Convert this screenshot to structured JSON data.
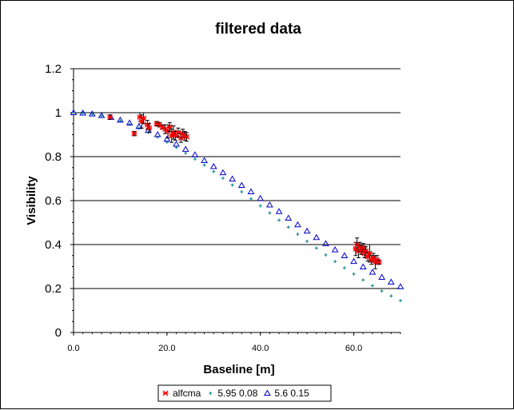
{
  "chart_data": {
    "type": "scatter",
    "title": "filtered data",
    "xlabel": "Baseline [m]",
    "ylabel": "Visibility",
    "xlim": [
      0,
      70
    ],
    "ylim": [
      0,
      1.2
    ],
    "x_ticks": [
      {
        "value": 0,
        "label": "0.0"
      },
      {
        "value": 20,
        "label": "20.0"
      },
      {
        "value": 40,
        "label": "40.0"
      },
      {
        "value": 60,
        "label": "60.0"
      }
    ],
    "y_ticks": [
      {
        "value": 0,
        "label": "0"
      },
      {
        "value": 0.2,
        "label": "0.2"
      },
      {
        "value": 0.4,
        "label": "0.4"
      },
      {
        "value": 0.6,
        "label": "0.6"
      },
      {
        "value": 0.8,
        "label": "0.8"
      },
      {
        "value": 1.0,
        "label": "1"
      },
      {
        "value": 1.2,
        "label": "1.2"
      }
    ],
    "grid": "horizontal",
    "legend_position": "bottom",
    "series": [
      {
        "name": "alfcma",
        "marker": "asterisk",
        "color": "#ff0000",
        "error_bars": true,
        "points": [
          {
            "x": 7.8,
            "y": 0.98,
            "err": 0.01
          },
          {
            "x": 13.0,
            "y": 0.905,
            "err": 0.01
          },
          {
            "x": 14.2,
            "y": 0.98,
            "err": 0.02
          },
          {
            "x": 14.6,
            "y": 0.96,
            "err": 0.03
          },
          {
            "x": 15.0,
            "y": 0.975,
            "err": 0.025
          },
          {
            "x": 15.8,
            "y": 0.945,
            "err": 0.02
          },
          {
            "x": 16.2,
            "y": 0.93,
            "err": 0.02
          },
          {
            "x": 17.8,
            "y": 0.95,
            "err": 0.01
          },
          {
            "x": 18.4,
            "y": 0.945,
            "err": 0.01
          },
          {
            "x": 19.0,
            "y": 0.935,
            "err": 0.01
          },
          {
            "x": 19.6,
            "y": 0.925,
            "err": 0.02
          },
          {
            "x": 20.2,
            "y": 0.915,
            "err": 0.03
          },
          {
            "x": 20.6,
            "y": 0.935,
            "err": 0.02
          },
          {
            "x": 21.0,
            "y": 0.895,
            "err": 0.03
          },
          {
            "x": 21.4,
            "y": 0.91,
            "err": 0.03
          },
          {
            "x": 21.8,
            "y": 0.895,
            "err": 0.02
          },
          {
            "x": 22.4,
            "y": 0.91,
            "err": 0.02
          },
          {
            "x": 23.0,
            "y": 0.885,
            "err": 0.02
          },
          {
            "x": 23.4,
            "y": 0.905,
            "err": 0.02
          },
          {
            "x": 23.8,
            "y": 0.895,
            "err": 0.02
          },
          {
            "x": 24.2,
            "y": 0.89,
            "err": 0.02
          },
          {
            "x": 60.4,
            "y": 0.38,
            "err": 0.03
          },
          {
            "x": 60.7,
            "y": 0.4,
            "err": 0.03
          },
          {
            "x": 61.0,
            "y": 0.37,
            "err": 0.03
          },
          {
            "x": 61.3,
            "y": 0.39,
            "err": 0.02
          },
          {
            "x": 61.6,
            "y": 0.375,
            "err": 0.02
          },
          {
            "x": 62.0,
            "y": 0.385,
            "err": 0.02
          },
          {
            "x": 62.3,
            "y": 0.36,
            "err": 0.02
          },
          {
            "x": 62.6,
            "y": 0.37,
            "err": 0.02
          },
          {
            "x": 63.0,
            "y": 0.345,
            "err": 0.02
          },
          {
            "x": 63.4,
            "y": 0.36,
            "err": 0.04
          },
          {
            "x": 63.8,
            "y": 0.33,
            "err": 0.02
          },
          {
            "x": 64.2,
            "y": 0.34,
            "err": 0.02
          },
          {
            "x": 64.6,
            "y": 0.32,
            "err": 0.03
          },
          {
            "x": 65.0,
            "y": 0.33,
            "err": 0.02
          },
          {
            "x": 65.4,
            "y": 0.32,
            "err": 0.01
          }
        ]
      },
      {
        "name": "5.95 0.08",
        "marker": "plus",
        "color": "#008080",
        "points": [
          {
            "x": 0,
            "y": 1.0
          },
          {
            "x": 2,
            "y": 0.998
          },
          {
            "x": 4,
            "y": 0.993
          },
          {
            "x": 6,
            "y": 0.985
          },
          {
            "x": 8,
            "y": 0.975
          },
          {
            "x": 10,
            "y": 0.962
          },
          {
            "x": 12,
            "y": 0.947
          },
          {
            "x": 14,
            "y": 0.93
          },
          {
            "x": 16,
            "y": 0.91
          },
          {
            "x": 18,
            "y": 0.889
          },
          {
            "x": 20,
            "y": 0.866
          },
          {
            "x": 22,
            "y": 0.842
          },
          {
            "x": 24,
            "y": 0.816
          },
          {
            "x": 26,
            "y": 0.789
          },
          {
            "x": 28,
            "y": 0.761
          },
          {
            "x": 30,
            "y": 0.732
          },
          {
            "x": 32,
            "y": 0.702
          },
          {
            "x": 34,
            "y": 0.671
          },
          {
            "x": 36,
            "y": 0.64
          },
          {
            "x": 38,
            "y": 0.608
          },
          {
            "x": 40,
            "y": 0.576
          },
          {
            "x": 42,
            "y": 0.544
          },
          {
            "x": 44,
            "y": 0.511
          },
          {
            "x": 46,
            "y": 0.479
          },
          {
            "x": 48,
            "y": 0.447
          },
          {
            "x": 50,
            "y": 0.415
          },
          {
            "x": 52,
            "y": 0.384
          },
          {
            "x": 54,
            "y": 0.353
          },
          {
            "x": 56,
            "y": 0.323
          },
          {
            "x": 58,
            "y": 0.294
          },
          {
            "x": 60,
            "y": 0.266
          },
          {
            "x": 62,
            "y": 0.239
          },
          {
            "x": 64,
            "y": 0.213
          },
          {
            "x": 66,
            "y": 0.189
          },
          {
            "x": 68,
            "y": 0.166
          },
          {
            "x": 70,
            "y": 0.145
          }
        ]
      },
      {
        "name": "5.6 0.15",
        "marker": "triangle",
        "color": "#0000cc",
        "points": [
          {
            "x": 0,
            "y": 1.0
          },
          {
            "x": 2,
            "y": 0.998
          },
          {
            "x": 4,
            "y": 0.994
          },
          {
            "x": 6,
            "y": 0.987
          },
          {
            "x": 8,
            "y": 0.978
          },
          {
            "x": 10,
            "y": 0.966
          },
          {
            "x": 12,
            "y": 0.953
          },
          {
            "x": 14,
            "y": 0.937
          },
          {
            "x": 16,
            "y": 0.919
          },
          {
            "x": 18,
            "y": 0.9
          },
          {
            "x": 20,
            "y": 0.879
          },
          {
            "x": 22,
            "y": 0.857
          },
          {
            "x": 24,
            "y": 0.833
          },
          {
            "x": 26,
            "y": 0.808
          },
          {
            "x": 28,
            "y": 0.782
          },
          {
            "x": 30,
            "y": 0.755
          },
          {
            "x": 32,
            "y": 0.727
          },
          {
            "x": 34,
            "y": 0.698
          },
          {
            "x": 36,
            "y": 0.669
          },
          {
            "x": 38,
            "y": 0.64
          },
          {
            "x": 40,
            "y": 0.61
          },
          {
            "x": 42,
            "y": 0.58
          },
          {
            "x": 44,
            "y": 0.55
          },
          {
            "x": 46,
            "y": 0.52
          },
          {
            "x": 48,
            "y": 0.49
          },
          {
            "x": 50,
            "y": 0.461
          },
          {
            "x": 52,
            "y": 0.432
          },
          {
            "x": 54,
            "y": 0.404
          },
          {
            "x": 56,
            "y": 0.376
          },
          {
            "x": 58,
            "y": 0.349
          },
          {
            "x": 60,
            "y": 0.323
          },
          {
            "x": 62,
            "y": 0.298
          },
          {
            "x": 64,
            "y": 0.274
          },
          {
            "x": 66,
            "y": 0.251
          },
          {
            "x": 68,
            "y": 0.229
          },
          {
            "x": 70,
            "y": 0.208
          }
        ]
      }
    ]
  }
}
